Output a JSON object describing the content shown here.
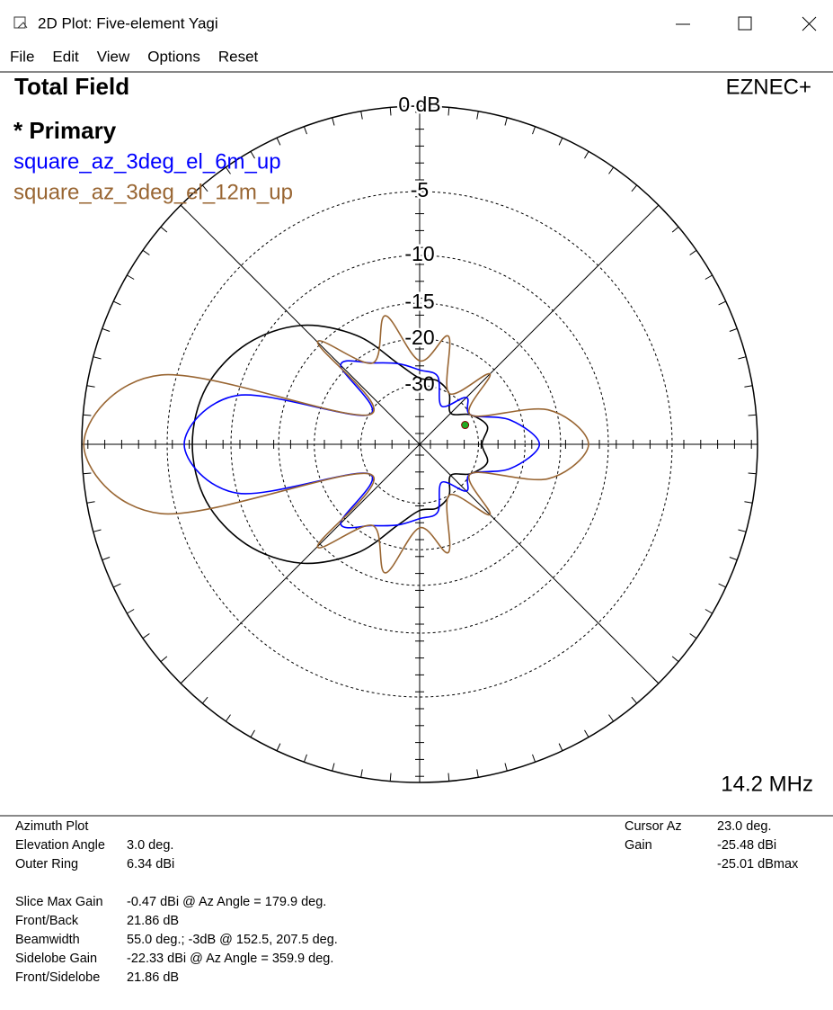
{
  "window": {
    "title": "2D Plot: Five-element Yagi"
  },
  "menu": [
    "File",
    "Edit",
    "View",
    "Options",
    "Reset"
  ],
  "chart_data": {
    "type": "polar",
    "title": "Total Field",
    "brand": "EZNEC+",
    "frequency": "14.2 MHz",
    "scale": "arrl-log",
    "rticks": [
      {
        "value": 0,
        "label": "0 dB"
      },
      -5,
      -10,
      -15,
      -20,
      -30
    ],
    "angles": [
      0,
      15,
      30,
      45,
      60,
      75,
      90,
      105,
      120,
      135,
      150,
      165,
      180,
      195,
      210,
      225,
      240,
      255,
      270,
      285,
      300,
      315,
      330,
      345
    ],
    "series": [
      {
        "name": "* Primary",
        "color": "#000000",
        "values": [
          -29,
          -27,
          -30,
          -35,
          -30,
          -28,
          -28,
          -24,
          -17,
          -12,
          -9,
          -7.3,
          -6.8,
          -7.3,
          -9,
          -12,
          -17,
          -24,
          -28,
          -28,
          -30,
          -35,
          -30,
          -27
        ]
      },
      {
        "name": "square_az_3deg_el_6m_up",
        "color": "#0000ff",
        "values": [
          -17.8,
          -22,
          -30,
          -28,
          -35,
          -27,
          -26,
          -24,
          -22,
          -19,
          -30,
          -10,
          -6.2,
          -10,
          -30,
          -19,
          -22,
          -24,
          -26,
          -27,
          -35,
          -28,
          -30,
          -22
        ]
      },
      {
        "name": "square_az_3deg_el_12m_up",
        "color": "#996633",
        "values": [
          -11.9,
          -16,
          -30,
          -21,
          -30,
          -19,
          -24,
          -16,
          -22,
          -14.6,
          -30,
          -4,
          -0.1,
          -4,
          -30,
          -14.6,
          -22,
          -16,
          -24,
          -19,
          -30,
          -21,
          -30,
          -16
        ]
      }
    ]
  },
  "info": {
    "plot_kind": "Azimuth Plot",
    "left": [
      {
        "label": "Elevation Angle",
        "value": "3.0 deg."
      },
      {
        "label": "Outer Ring",
        "value": "6.34 dBi"
      }
    ],
    "stats": [
      {
        "label": "Slice Max Gain",
        "value": "-0.47 dBi @ Az Angle = 179.9 deg."
      },
      {
        "label": "Front/Back",
        "value": "21.86 dB"
      },
      {
        "label": "Beamwidth",
        "value": "55.0 deg.; -3dB @ 152.5, 207.5 deg."
      },
      {
        "label": "Sidelobe Gain",
        "value": "-22.33 dBi @ Az Angle = 359.9 deg."
      },
      {
        "label": "Front/Sidelobe",
        "value": "21.86 dB"
      }
    ],
    "right": [
      {
        "label": "Cursor Az",
        "value": "23.0 deg."
      },
      {
        "label": "Gain",
        "value": "-25.48 dBi"
      }
    ],
    "right_extra": "-25.01 dBmax"
  }
}
